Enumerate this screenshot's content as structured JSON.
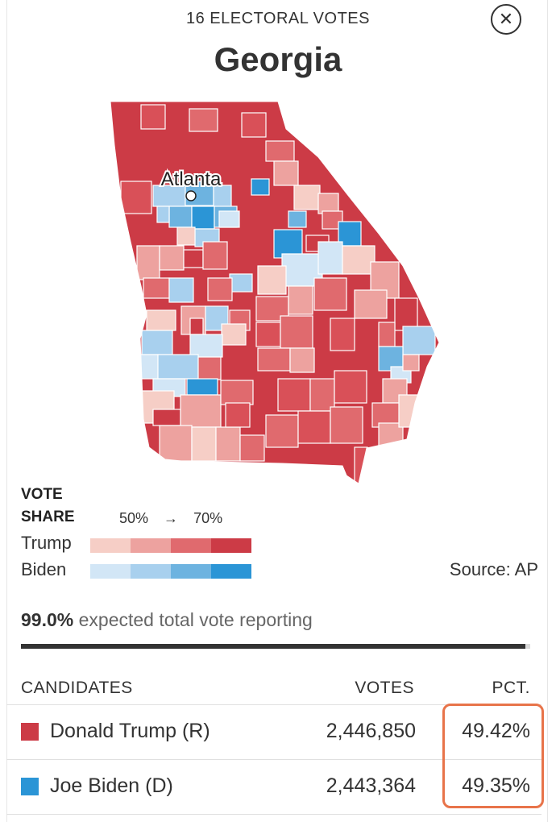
{
  "header": {
    "electoral_votes": "16 ELECTORAL VOTES",
    "state": "Georgia",
    "close_icon": "close-icon"
  },
  "map": {
    "city_label": "Atlanta",
    "colors": {
      "trump_dark": "#cc3b46",
      "trump_mid": "#e06a6e",
      "trump_light": "#eda29f",
      "trump_pale": "#f6cec6",
      "biden_dark": "#2b95d6",
      "biden_mid": "#6db3e0",
      "biden_light": "#a8d0ee",
      "biden_pale": "#d2e6f6",
      "border": "#ffffff"
    }
  },
  "legend": {
    "title": "VOTE SHARE",
    "range_low": "50%",
    "range_arrow": "→",
    "range_high": "70%",
    "trump_label": "Trump",
    "biden_label": "Biden",
    "trump_colors": [
      "#f6cec6",
      "#eda29f",
      "#e06a6e",
      "#cc3b46"
    ],
    "biden_colors": [
      "#d2e6f6",
      "#a8d0ee",
      "#6db3e0",
      "#2b95d6"
    ],
    "source": "Source: AP"
  },
  "reporting": {
    "pct": "99.0%",
    "text": " expected total vote reporting",
    "progress": 0.99
  },
  "table": {
    "headers": {
      "candidates": "CANDIDATES",
      "votes": "VOTES",
      "pct": "PCT."
    },
    "rows": [
      {
        "name": "Donald Trump (R)",
        "votes": "2,446,850",
        "pct": "49.42%",
        "color": "#cc3b46"
      },
      {
        "name": "Joe Biden (D)",
        "votes": "2,443,364",
        "pct": "49.35%",
        "color": "#2b95d6"
      }
    ],
    "highlight_color": "#e8744a"
  }
}
